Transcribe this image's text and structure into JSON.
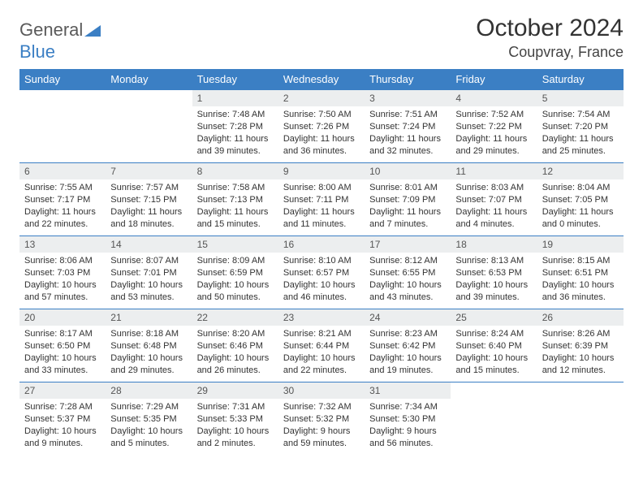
{
  "logo": {
    "text1": "General",
    "text2": "Blue",
    "text_color": "#5a5a5a",
    "accent_color": "#3b7fc4"
  },
  "title": "October 2024",
  "location": "Coupvray, France",
  "weekday_header_bg": "#3b7fc4",
  "weekday_header_fg": "#ffffff",
  "daynum_bg": "#eceeef",
  "border_color": "#3b7fc4",
  "weekdays": [
    "Sunday",
    "Monday",
    "Tuesday",
    "Wednesday",
    "Thursday",
    "Friday",
    "Saturday"
  ],
  "weeks": [
    [
      null,
      null,
      {
        "n": "1",
        "sunrise": "7:48 AM",
        "sunset": "7:28 PM",
        "daylight": "11 hours and 39 minutes."
      },
      {
        "n": "2",
        "sunrise": "7:50 AM",
        "sunset": "7:26 PM",
        "daylight": "11 hours and 36 minutes."
      },
      {
        "n": "3",
        "sunrise": "7:51 AM",
        "sunset": "7:24 PM",
        "daylight": "11 hours and 32 minutes."
      },
      {
        "n": "4",
        "sunrise": "7:52 AM",
        "sunset": "7:22 PM",
        "daylight": "11 hours and 29 minutes."
      },
      {
        "n": "5",
        "sunrise": "7:54 AM",
        "sunset": "7:20 PM",
        "daylight": "11 hours and 25 minutes."
      }
    ],
    [
      {
        "n": "6",
        "sunrise": "7:55 AM",
        "sunset": "7:17 PM",
        "daylight": "11 hours and 22 minutes."
      },
      {
        "n": "7",
        "sunrise": "7:57 AM",
        "sunset": "7:15 PM",
        "daylight": "11 hours and 18 minutes."
      },
      {
        "n": "8",
        "sunrise": "7:58 AM",
        "sunset": "7:13 PM",
        "daylight": "11 hours and 15 minutes."
      },
      {
        "n": "9",
        "sunrise": "8:00 AM",
        "sunset": "7:11 PM",
        "daylight": "11 hours and 11 minutes."
      },
      {
        "n": "10",
        "sunrise": "8:01 AM",
        "sunset": "7:09 PM",
        "daylight": "11 hours and 7 minutes."
      },
      {
        "n": "11",
        "sunrise": "8:03 AM",
        "sunset": "7:07 PM",
        "daylight": "11 hours and 4 minutes."
      },
      {
        "n": "12",
        "sunrise": "8:04 AM",
        "sunset": "7:05 PM",
        "daylight": "11 hours and 0 minutes."
      }
    ],
    [
      {
        "n": "13",
        "sunrise": "8:06 AM",
        "sunset": "7:03 PM",
        "daylight": "10 hours and 57 minutes."
      },
      {
        "n": "14",
        "sunrise": "8:07 AM",
        "sunset": "7:01 PM",
        "daylight": "10 hours and 53 minutes."
      },
      {
        "n": "15",
        "sunrise": "8:09 AM",
        "sunset": "6:59 PM",
        "daylight": "10 hours and 50 minutes."
      },
      {
        "n": "16",
        "sunrise": "8:10 AM",
        "sunset": "6:57 PM",
        "daylight": "10 hours and 46 minutes."
      },
      {
        "n": "17",
        "sunrise": "8:12 AM",
        "sunset": "6:55 PM",
        "daylight": "10 hours and 43 minutes."
      },
      {
        "n": "18",
        "sunrise": "8:13 AM",
        "sunset": "6:53 PM",
        "daylight": "10 hours and 39 minutes."
      },
      {
        "n": "19",
        "sunrise": "8:15 AM",
        "sunset": "6:51 PM",
        "daylight": "10 hours and 36 minutes."
      }
    ],
    [
      {
        "n": "20",
        "sunrise": "8:17 AM",
        "sunset": "6:50 PM",
        "daylight": "10 hours and 33 minutes."
      },
      {
        "n": "21",
        "sunrise": "8:18 AM",
        "sunset": "6:48 PM",
        "daylight": "10 hours and 29 minutes."
      },
      {
        "n": "22",
        "sunrise": "8:20 AM",
        "sunset": "6:46 PM",
        "daylight": "10 hours and 26 minutes."
      },
      {
        "n": "23",
        "sunrise": "8:21 AM",
        "sunset": "6:44 PM",
        "daylight": "10 hours and 22 minutes."
      },
      {
        "n": "24",
        "sunrise": "8:23 AM",
        "sunset": "6:42 PM",
        "daylight": "10 hours and 19 minutes."
      },
      {
        "n": "25",
        "sunrise": "8:24 AM",
        "sunset": "6:40 PM",
        "daylight": "10 hours and 15 minutes."
      },
      {
        "n": "26",
        "sunrise": "8:26 AM",
        "sunset": "6:39 PM",
        "daylight": "10 hours and 12 minutes."
      }
    ],
    [
      {
        "n": "27",
        "sunrise": "7:28 AM",
        "sunset": "5:37 PM",
        "daylight": "10 hours and 9 minutes."
      },
      {
        "n": "28",
        "sunrise": "7:29 AM",
        "sunset": "5:35 PM",
        "daylight": "10 hours and 5 minutes."
      },
      {
        "n": "29",
        "sunrise": "7:31 AM",
        "sunset": "5:33 PM",
        "daylight": "10 hours and 2 minutes."
      },
      {
        "n": "30",
        "sunrise": "7:32 AM",
        "sunset": "5:32 PM",
        "daylight": "9 hours and 59 minutes."
      },
      {
        "n": "31",
        "sunrise": "7:34 AM",
        "sunset": "5:30 PM",
        "daylight": "9 hours and 56 minutes."
      },
      null,
      null
    ]
  ],
  "labels": {
    "sunrise": "Sunrise: ",
    "sunset": "Sunset: ",
    "daylight": "Daylight: "
  }
}
